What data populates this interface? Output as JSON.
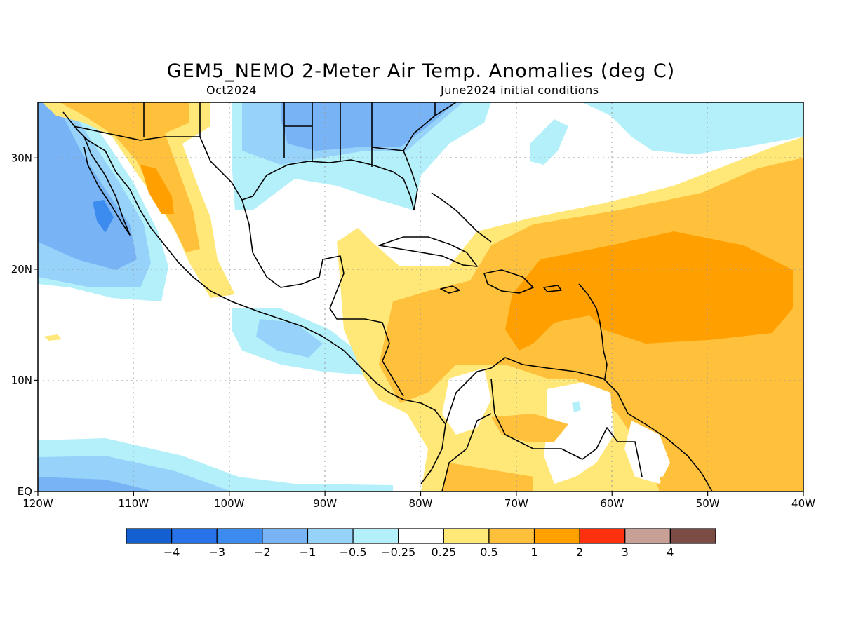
{
  "title": "GEM5_NEMO 2-Meter Air Temp. Anomalies (deg C)",
  "subtitle_left": "Oct2024",
  "subtitle_right": "June2024 initial conditions",
  "map": {
    "lon_range": [
      -120,
      -40
    ],
    "lat_range": [
      0,
      35
    ],
    "lon_tick_values": [
      -120,
      -110,
      -100,
      -90,
      -80,
      -70,
      -60,
      -50,
      -40
    ],
    "lon_tick_labels": [
      "120W",
      "110W",
      "100W",
      "90W",
      "80W",
      "70W",
      "60W",
      "50W",
      "40W"
    ],
    "lat_tick_values": [
      0,
      10,
      20,
      30
    ],
    "lat_tick_labels": [
      "EQ",
      "10N",
      "20N",
      "30N"
    ],
    "gridlines": true
  },
  "colorbar": {
    "colors": [
      "#1460d2",
      "#2872ea",
      "#3c8cf0",
      "#78b4f5",
      "#96d2fa",
      "#b4f0fa",
      "#ffffff",
      "#ffe878",
      "#ffc03c",
      "#ffa000",
      "#ff3010",
      "#c8a096",
      "#7a4c44"
    ],
    "labels": [
      "−4",
      "−3",
      "−2",
      "−1",
      "−0.5",
      "−0.25",
      "0.25",
      "0.5",
      "1",
      "2",
      "3",
      "4"
    ]
  }
}
